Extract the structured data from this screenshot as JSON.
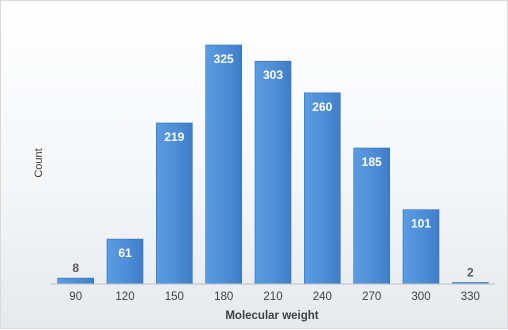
{
  "chart_data": {
    "type": "bar",
    "categories": [
      "90",
      "120",
      "150",
      "180",
      "210",
      "240",
      "270",
      "300",
      "330"
    ],
    "values": [
      8,
      61,
      219,
      325,
      303,
      260,
      185,
      101,
      2
    ],
    "xlabel": "Molecular weight",
    "ylabel": "Count",
    "ylim": [
      0,
      325
    ],
    "grid": false,
    "legend": "none",
    "data_labels": true,
    "colors": {
      "bar": "#4f8fd8",
      "bar_edge": "#2f6fbf",
      "label": "#ffffff",
      "label_outside": "#595959"
    }
  }
}
